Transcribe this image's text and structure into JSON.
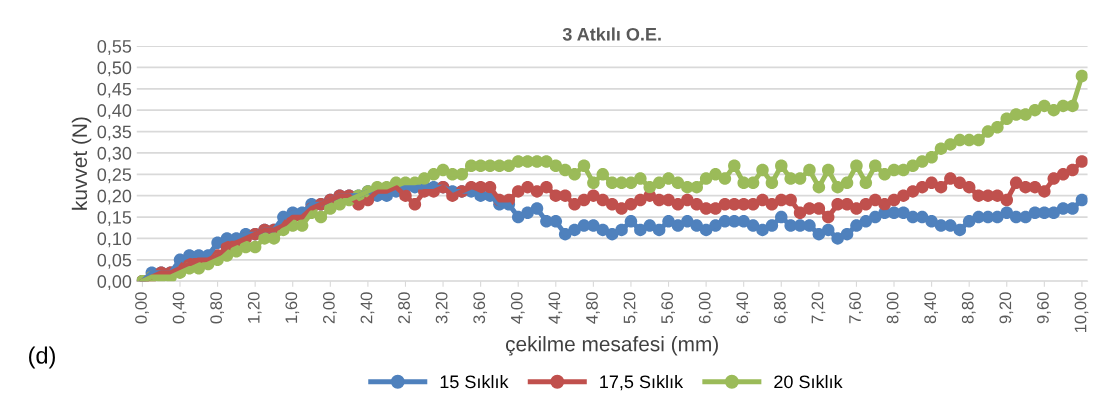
{
  "chart_data": {
    "type": "line",
    "title": "3 Atkılı O.E.",
    "xlabel": "çekilme mesafesi (mm)",
    "ylabel": "kuvvet (N)",
    "annotations": [
      "(d)"
    ],
    "x": [
      0.0,
      0.1,
      0.2,
      0.3,
      0.4,
      0.5,
      0.6,
      0.7,
      0.8,
      0.9,
      1.0,
      1.1,
      1.2,
      1.3,
      1.4,
      1.5,
      1.6,
      1.7,
      1.8,
      1.9,
      2.0,
      2.1,
      2.2,
      2.3,
      2.4,
      2.5,
      2.6,
      2.7,
      2.8,
      2.9,
      3.0,
      3.1,
      3.2,
      3.3,
      3.4,
      3.5,
      3.6,
      3.7,
      3.8,
      3.9,
      4.0,
      4.1,
      4.2,
      4.3,
      4.4,
      4.5,
      4.6,
      4.7,
      4.8,
      4.9,
      5.0,
      5.1,
      5.2,
      5.3,
      5.4,
      5.5,
      5.6,
      5.7,
      5.8,
      5.9,
      6.0,
      6.1,
      6.2,
      6.3,
      6.4,
      6.5,
      6.6,
      6.7,
      6.8,
      6.9,
      7.0,
      7.1,
      7.2,
      7.3,
      7.4,
      7.5,
      7.6,
      7.7,
      7.8,
      7.9,
      8.0,
      8.1,
      8.2,
      8.3,
      8.4,
      8.5,
      8.6,
      8.7,
      8.8,
      8.9,
      9.0,
      9.1,
      9.2,
      9.3,
      9.4,
      9.5,
      9.6,
      9.7,
      9.8,
      9.9,
      10.0
    ],
    "series": [
      {
        "name": "15 Sıklık",
        "color": "#4f81bd",
        "values": [
          0.0,
          0.02,
          0.02,
          0.02,
          0.05,
          0.06,
          0.06,
          0.06,
          0.09,
          0.1,
          0.1,
          0.11,
          0.11,
          0.12,
          0.12,
          0.15,
          0.16,
          0.16,
          0.18,
          0.18,
          0.19,
          0.2,
          0.2,
          0.2,
          0.21,
          0.2,
          0.2,
          0.21,
          0.22,
          0.22,
          0.22,
          0.22,
          0.22,
          0.21,
          0.21,
          0.21,
          0.2,
          0.2,
          0.18,
          0.18,
          0.15,
          0.16,
          0.17,
          0.14,
          0.14,
          0.11,
          0.12,
          0.13,
          0.13,
          0.12,
          0.11,
          0.12,
          0.14,
          0.12,
          0.13,
          0.12,
          0.14,
          0.13,
          0.14,
          0.13,
          0.12,
          0.13,
          0.14,
          0.14,
          0.14,
          0.13,
          0.12,
          0.13,
          0.15,
          0.13,
          0.13,
          0.13,
          0.11,
          0.12,
          0.1,
          0.11,
          0.13,
          0.14,
          0.15,
          0.16,
          0.16,
          0.16,
          0.15,
          0.15,
          0.14,
          0.13,
          0.13,
          0.12,
          0.14,
          0.15,
          0.15,
          0.15,
          0.16,
          0.15,
          0.15,
          0.16,
          0.16,
          0.16,
          0.17,
          0.17,
          0.19
        ]
      },
      {
        "name": "17,5 Sıklık",
        "color": "#c0504d",
        "values": [
          0.0,
          0.01,
          0.02,
          0.02,
          0.03,
          0.04,
          0.05,
          0.05,
          0.06,
          0.08,
          0.09,
          0.1,
          0.11,
          0.12,
          0.12,
          0.13,
          0.15,
          0.15,
          0.17,
          0.18,
          0.19,
          0.2,
          0.2,
          0.18,
          0.19,
          0.21,
          0.21,
          0.22,
          0.2,
          0.18,
          0.21,
          0.21,
          0.22,
          0.2,
          0.21,
          0.22,
          0.22,
          0.22,
          0.19,
          0.19,
          0.21,
          0.22,
          0.21,
          0.22,
          0.2,
          0.2,
          0.18,
          0.19,
          0.2,
          0.19,
          0.18,
          0.17,
          0.18,
          0.19,
          0.2,
          0.19,
          0.19,
          0.18,
          0.19,
          0.18,
          0.17,
          0.17,
          0.18,
          0.18,
          0.18,
          0.18,
          0.19,
          0.18,
          0.19,
          0.19,
          0.16,
          0.17,
          0.17,
          0.15,
          0.18,
          0.18,
          0.17,
          0.18,
          0.19,
          0.18,
          0.19,
          0.2,
          0.21,
          0.22,
          0.23,
          0.22,
          0.24,
          0.23,
          0.22,
          0.2,
          0.2,
          0.2,
          0.19,
          0.23,
          0.22,
          0.22,
          0.21,
          0.24,
          0.25,
          0.26,
          0.28
        ]
      },
      {
        "name": "20 Sıklık",
        "color": "#9bbb59",
        "values": [
          0.0,
          0.01,
          0.01,
          0.01,
          0.02,
          0.03,
          0.03,
          0.04,
          0.05,
          0.06,
          0.07,
          0.08,
          0.08,
          0.1,
          0.1,
          0.12,
          0.13,
          0.13,
          0.16,
          0.15,
          0.17,
          0.18,
          0.19,
          0.2,
          0.21,
          0.22,
          0.22,
          0.23,
          0.23,
          0.23,
          0.24,
          0.25,
          0.26,
          0.25,
          0.25,
          0.27,
          0.27,
          0.27,
          0.27,
          0.27,
          0.28,
          0.28,
          0.28,
          0.28,
          0.27,
          0.26,
          0.25,
          0.27,
          0.23,
          0.25,
          0.23,
          0.23,
          0.23,
          0.24,
          0.22,
          0.23,
          0.24,
          0.23,
          0.22,
          0.22,
          0.24,
          0.25,
          0.24,
          0.27,
          0.23,
          0.23,
          0.26,
          0.23,
          0.27,
          0.24,
          0.24,
          0.26,
          0.22,
          0.26,
          0.22,
          0.23,
          0.27,
          0.23,
          0.27,
          0.25,
          0.26,
          0.26,
          0.27,
          0.28,
          0.29,
          0.31,
          0.32,
          0.33,
          0.33,
          0.33,
          0.35,
          0.36,
          0.38,
          0.39,
          0.39,
          0.4,
          0.41,
          0.4,
          0.41,
          0.41,
          0.48
        ]
      }
    ],
    "xlim": [
      -0.06,
      10.06
    ],
    "xticks": [
      {
        "value": 0,
        "label": "0,00"
      },
      {
        "value": 0.4,
        "label": "0,40"
      },
      {
        "value": 0.8,
        "label": "0,80"
      },
      {
        "value": 1.2,
        "label": "1,20"
      },
      {
        "value": 1.6,
        "label": "1,60"
      },
      {
        "value": 2.0,
        "label": "2,00"
      },
      {
        "value": 2.4,
        "label": "2,40"
      },
      {
        "value": 2.8,
        "label": "2,80"
      },
      {
        "value": 3.2,
        "label": "3,20"
      },
      {
        "value": 3.6,
        "label": "3,60"
      },
      {
        "value": 4.0,
        "label": "4,00"
      },
      {
        "value": 4.4,
        "label": "4,40"
      },
      {
        "value": 4.8,
        "label": "4,80"
      },
      {
        "value": 5.2,
        "label": "5,20"
      },
      {
        "value": 5.6,
        "label": "5,60"
      },
      {
        "value": 6.0,
        "label": "6,00"
      },
      {
        "value": 6.4,
        "label": "6,40"
      },
      {
        "value": 6.8,
        "label": "6,80"
      },
      {
        "value": 7.2,
        "label": "7,20"
      },
      {
        "value": 7.6,
        "label": "7,60"
      },
      {
        "value": 8.0,
        "label": "8,00"
      },
      {
        "value": 8.4,
        "label": "8,40"
      },
      {
        "value": 8.8,
        "label": "8,80"
      },
      {
        "value": 9.2,
        "label": "9,20"
      },
      {
        "value": 9.6,
        "label": "9,60"
      },
      {
        "value": 10.0,
        "label": "10,00"
      }
    ],
    "ylim": [
      0,
      0.55
    ],
    "yticks": [
      {
        "value": 0,
        "label": "0,00"
      },
      {
        "value": 0.05,
        "label": "0,05"
      },
      {
        "value": 0.1,
        "label": "0,10"
      },
      {
        "value": 0.15,
        "label": "0,15"
      },
      {
        "value": 0.2,
        "label": "0,20"
      },
      {
        "value": 0.25,
        "label": "0,25"
      },
      {
        "value": 0.3,
        "label": "0,30"
      },
      {
        "value": 0.35,
        "label": "0,35"
      },
      {
        "value": 0.4,
        "label": "0,40"
      },
      {
        "value": 0.45,
        "label": "0,45"
      },
      {
        "value": 0.5,
        "label": "0,50"
      },
      {
        "value": 0.55,
        "label": "0,55"
      }
    ],
    "grid": "y",
    "legend": "bottom",
    "marker": "circle",
    "line_style": "solid"
  }
}
